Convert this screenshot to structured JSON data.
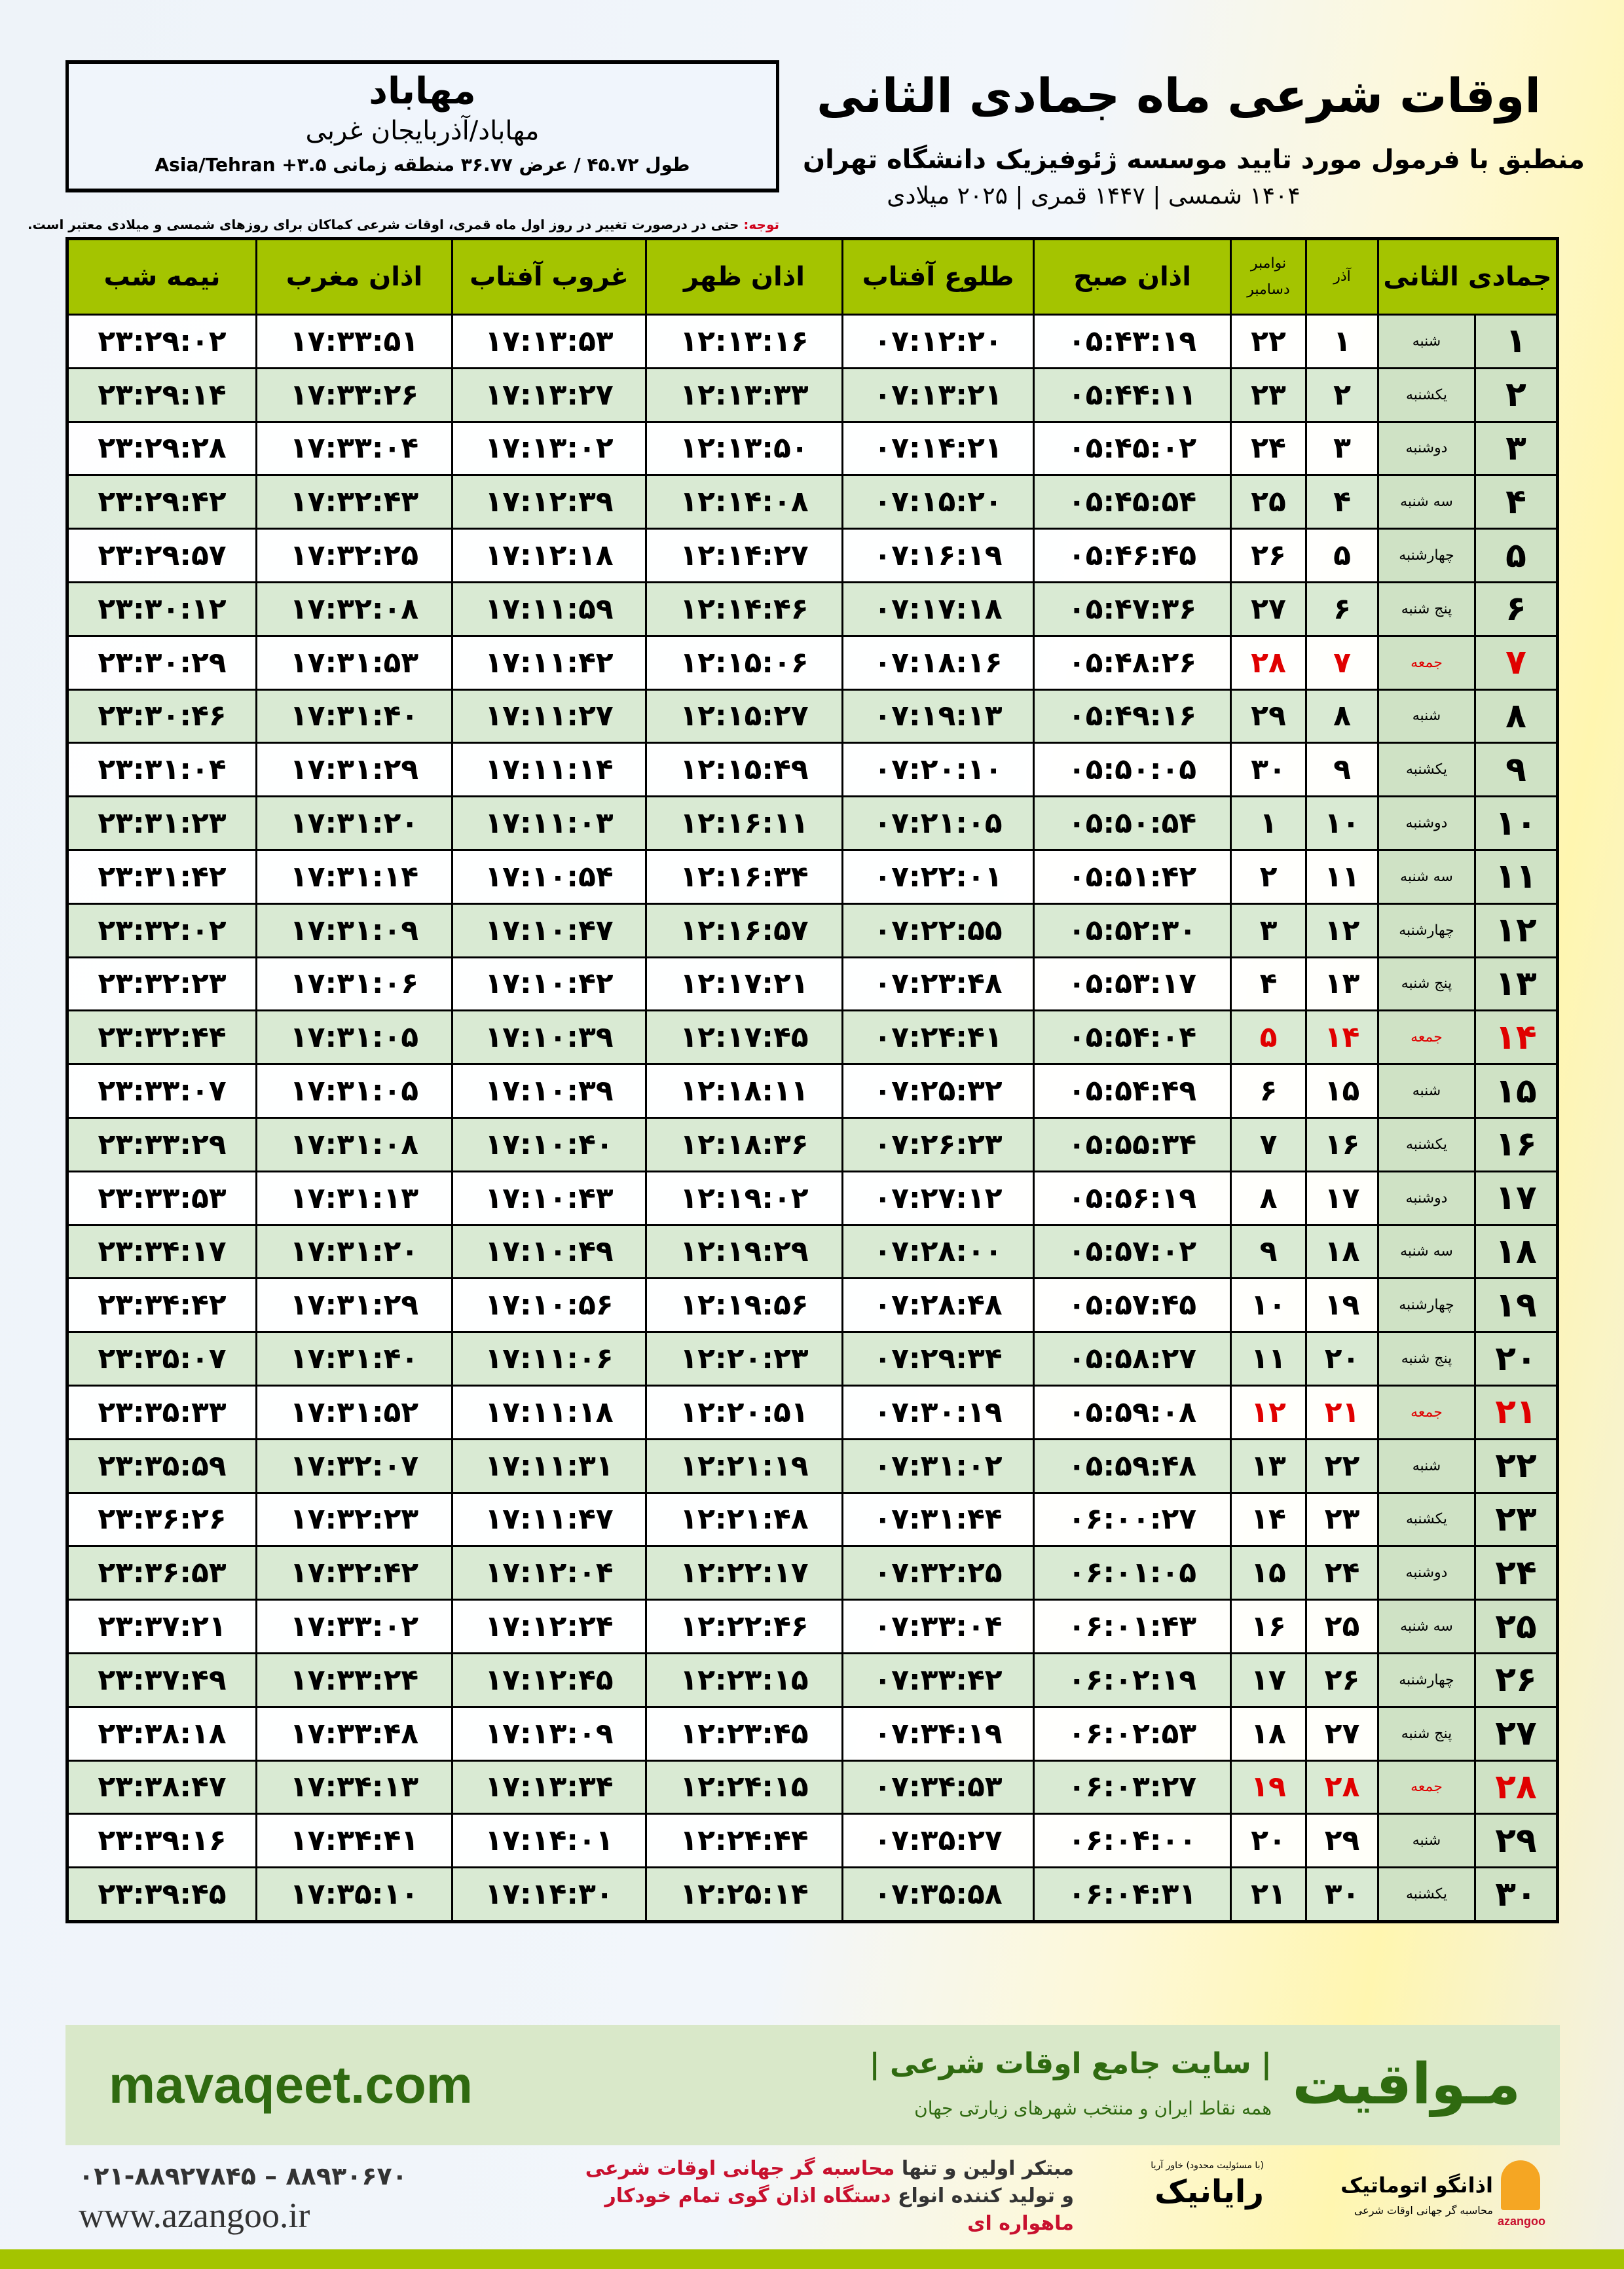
{
  "location": {
    "city": "مهاباد",
    "province": "مهاباد/آذربایجان غربی",
    "coords": "طول ۴۵.۷۲ / عرض ۳۶.۷۷ منطقه زمانی ۳.۵+ Asia/Tehran"
  },
  "header": {
    "title": "اوقات شرعی ماه جمادی الثانی",
    "subtitle": "منطبق با فرمول مورد تایید موسسه ژئوفیزیک دانشگاه تهران",
    "years": "۱۴۰۴ شمسی | ۱۴۴۷ قمری | ۲۰۲۵ میلادی"
  },
  "note": {
    "label": "توجه:",
    "text": " حتی در درصورت تغییر در روز اول ماه قمری، اوقات شرعی کماکان برای روزهای شمسی و میلادی معتبر است."
  },
  "colors": {
    "header_bg": "#a4c400",
    "row_alt": "#d9ead3",
    "friday": "#e00000",
    "brand_green": "#2f6a10"
  },
  "table": {
    "headers": {
      "hijri": "جمادی الثانی",
      "shamsi": "آذر",
      "gregorian_top": "نوامبر",
      "gregorian_bottom": "دسامبر",
      "fajr": "اذان صبح",
      "sunrise": "طلوع آفتاب",
      "dhuhr": "اذان ظهر",
      "sunset": "غروب آفتاب",
      "maghrib": "اذان مغرب",
      "midnight": "نیمه شب"
    },
    "rows": [
      [
        "۱",
        "شنبه",
        "۱",
        "۲۲",
        "۰۵:۴۳:۱۹",
        "۰۷:۱۲:۲۰",
        "۱۲:۱۳:۱۶",
        "۱۷:۱۳:۵۳",
        "۱۷:۳۳:۵۱",
        "۲۳:۲۹:۰۲"
      ],
      [
        "۲",
        "یکشنبه",
        "۲",
        "۲۳",
        "۰۵:۴۴:۱۱",
        "۰۷:۱۳:۲۱",
        "۱۲:۱۳:۳۳",
        "۱۷:۱۳:۲۷",
        "۱۷:۳۳:۲۶",
        "۲۳:۲۹:۱۴"
      ],
      [
        "۳",
        "دوشنبه",
        "۳",
        "۲۴",
        "۰۵:۴۵:۰۲",
        "۰۷:۱۴:۲۱",
        "۱۲:۱۳:۵۰",
        "۱۷:۱۳:۰۲",
        "۱۷:۳۳:۰۴",
        "۲۳:۲۹:۲۸"
      ],
      [
        "۴",
        "سه شنبه",
        "۴",
        "۲۵",
        "۰۵:۴۵:۵۴",
        "۰۷:۱۵:۲۰",
        "۱۲:۱۴:۰۸",
        "۱۷:۱۲:۳۹",
        "۱۷:۳۲:۴۳",
        "۲۳:۲۹:۴۲"
      ],
      [
        "۵",
        "چهارشنبه",
        "۵",
        "۲۶",
        "۰۵:۴۶:۴۵",
        "۰۷:۱۶:۱۹",
        "۱۲:۱۴:۲۷",
        "۱۷:۱۲:۱۸",
        "۱۷:۳۲:۲۵",
        "۲۳:۲۹:۵۷"
      ],
      [
        "۶",
        "پنج شنبه",
        "۶",
        "۲۷",
        "۰۵:۴۷:۳۶",
        "۰۷:۱۷:۱۸",
        "۱۲:۱۴:۴۶",
        "۱۷:۱۱:۵۹",
        "۱۷:۳۲:۰۸",
        "۲۳:۳۰:۱۲"
      ],
      [
        "۷",
        "جمعه",
        "۷",
        "۲۸",
        "۰۵:۴۸:۲۶",
        "۰۷:۱۸:۱۶",
        "۱۲:۱۵:۰۶",
        "۱۷:۱۱:۴۲",
        "۱۷:۳۱:۵۳",
        "۲۳:۳۰:۲۹"
      ],
      [
        "۸",
        "شنبه",
        "۸",
        "۲۹",
        "۰۵:۴۹:۱۶",
        "۰۷:۱۹:۱۳",
        "۱۲:۱۵:۲۷",
        "۱۷:۱۱:۲۷",
        "۱۷:۳۱:۴۰",
        "۲۳:۳۰:۴۶"
      ],
      [
        "۹",
        "یکشنبه",
        "۹",
        "۳۰",
        "۰۵:۵۰:۰۵",
        "۰۷:۲۰:۱۰",
        "۱۲:۱۵:۴۹",
        "۱۷:۱۱:۱۴",
        "۱۷:۳۱:۲۹",
        "۲۳:۳۱:۰۴"
      ],
      [
        "۱۰",
        "دوشنبه",
        "۱۰",
        "۱",
        "۰۵:۵۰:۵۴",
        "۰۷:۲۱:۰۵",
        "۱۲:۱۶:۱۱",
        "۱۷:۱۱:۰۳",
        "۱۷:۳۱:۲۰",
        "۲۳:۳۱:۲۳"
      ],
      [
        "۱۱",
        "سه شنبه",
        "۱۱",
        "۲",
        "۰۵:۵۱:۴۲",
        "۰۷:۲۲:۰۱",
        "۱۲:۱۶:۳۴",
        "۱۷:۱۰:۵۴",
        "۱۷:۳۱:۱۴",
        "۲۳:۳۱:۴۲"
      ],
      [
        "۱۲",
        "چهارشنبه",
        "۱۲",
        "۳",
        "۰۵:۵۲:۳۰",
        "۰۷:۲۲:۵۵",
        "۱۲:۱۶:۵۷",
        "۱۷:۱۰:۴۷",
        "۱۷:۳۱:۰۹",
        "۲۳:۳۲:۰۲"
      ],
      [
        "۱۳",
        "پنج شنبه",
        "۱۳",
        "۴",
        "۰۵:۵۳:۱۷",
        "۰۷:۲۳:۴۸",
        "۱۲:۱۷:۲۱",
        "۱۷:۱۰:۴۲",
        "۱۷:۳۱:۰۶",
        "۲۳:۳۲:۲۳"
      ],
      [
        "۱۴",
        "جمعه",
        "۱۴",
        "۵",
        "۰۵:۵۴:۰۴",
        "۰۷:۲۴:۴۱",
        "۱۲:۱۷:۴۵",
        "۱۷:۱۰:۳۹",
        "۱۷:۳۱:۰۵",
        "۲۳:۳۲:۴۴"
      ],
      [
        "۱۵",
        "شنبه",
        "۱۵",
        "۶",
        "۰۵:۵۴:۴۹",
        "۰۷:۲۵:۳۲",
        "۱۲:۱۸:۱۱",
        "۱۷:۱۰:۳۹",
        "۱۷:۳۱:۰۵",
        "۲۳:۳۳:۰۷"
      ],
      [
        "۱۶",
        "یکشنبه",
        "۱۶",
        "۷",
        "۰۵:۵۵:۳۴",
        "۰۷:۲۶:۲۳",
        "۱۲:۱۸:۳۶",
        "۱۷:۱۰:۴۰",
        "۱۷:۳۱:۰۸",
        "۲۳:۳۳:۲۹"
      ],
      [
        "۱۷",
        "دوشنبه",
        "۱۷",
        "۸",
        "۰۵:۵۶:۱۹",
        "۰۷:۲۷:۱۲",
        "۱۲:۱۹:۰۲",
        "۱۷:۱۰:۴۳",
        "۱۷:۳۱:۱۳",
        "۲۳:۳۳:۵۳"
      ],
      [
        "۱۸",
        "سه شنبه",
        "۱۸",
        "۹",
        "۰۵:۵۷:۰۲",
        "۰۷:۲۸:۰۰",
        "۱۲:۱۹:۲۹",
        "۱۷:۱۰:۴۹",
        "۱۷:۳۱:۲۰",
        "۲۳:۳۴:۱۷"
      ],
      [
        "۱۹",
        "چهارشنبه",
        "۱۹",
        "۱۰",
        "۰۵:۵۷:۴۵",
        "۰۷:۲۸:۴۸",
        "۱۲:۱۹:۵۶",
        "۱۷:۱۰:۵۶",
        "۱۷:۳۱:۲۹",
        "۲۳:۳۴:۴۲"
      ],
      [
        "۲۰",
        "پنج شنبه",
        "۲۰",
        "۱۱",
        "۰۵:۵۸:۲۷",
        "۰۷:۲۹:۳۴",
        "۱۲:۲۰:۲۳",
        "۱۷:۱۱:۰۶",
        "۱۷:۳۱:۴۰",
        "۲۳:۳۵:۰۷"
      ],
      [
        "۲۱",
        "جمعه",
        "۲۱",
        "۱۲",
        "۰۵:۵۹:۰۸",
        "۰۷:۳۰:۱۹",
        "۱۲:۲۰:۵۱",
        "۱۷:۱۱:۱۸",
        "۱۷:۳۱:۵۲",
        "۲۳:۳۵:۳۳"
      ],
      [
        "۲۲",
        "شنبه",
        "۲۲",
        "۱۳",
        "۰۵:۵۹:۴۸",
        "۰۷:۳۱:۰۲",
        "۱۲:۲۱:۱۹",
        "۱۷:۱۱:۳۱",
        "۱۷:۳۲:۰۷",
        "۲۳:۳۵:۵۹"
      ],
      [
        "۲۳",
        "یکشنبه",
        "۲۳",
        "۱۴",
        "۰۶:۰۰:۲۷",
        "۰۷:۳۱:۴۴",
        "۱۲:۲۱:۴۸",
        "۱۷:۱۱:۴۷",
        "۱۷:۳۲:۲۳",
        "۲۳:۳۶:۲۶"
      ],
      [
        "۲۴",
        "دوشنبه",
        "۲۴",
        "۱۵",
        "۰۶:۰۱:۰۵",
        "۰۷:۳۲:۲۵",
        "۱۲:۲۲:۱۷",
        "۱۷:۱۲:۰۴",
        "۱۷:۳۲:۴۲",
        "۲۳:۳۶:۵۳"
      ],
      [
        "۲۵",
        "سه شنبه",
        "۲۵",
        "۱۶",
        "۰۶:۰۱:۴۳",
        "۰۷:۳۳:۰۴",
        "۱۲:۲۲:۴۶",
        "۱۷:۱۲:۲۴",
        "۱۷:۳۳:۰۲",
        "۲۳:۳۷:۲۱"
      ],
      [
        "۲۶",
        "چهارشنبه",
        "۲۶",
        "۱۷",
        "۰۶:۰۲:۱۹",
        "۰۷:۳۳:۴۲",
        "۱۲:۲۳:۱۵",
        "۱۷:۱۲:۴۵",
        "۱۷:۳۳:۲۴",
        "۲۳:۳۷:۴۹"
      ],
      [
        "۲۷",
        "پنج شنبه",
        "۲۷",
        "۱۸",
        "۰۶:۰۲:۵۳",
        "۰۷:۳۴:۱۹",
        "۱۲:۲۳:۴۵",
        "۱۷:۱۳:۰۹",
        "۱۷:۳۳:۴۸",
        "۲۳:۳۸:۱۸"
      ],
      [
        "۲۸",
        "جمعه",
        "۲۸",
        "۱۹",
        "۰۶:۰۳:۲۷",
        "۰۷:۳۴:۵۳",
        "۱۲:۲۴:۱۵",
        "۱۷:۱۳:۳۴",
        "۱۷:۳۴:۱۳",
        "۲۳:۳۸:۴۷"
      ],
      [
        "۲۹",
        "شنبه",
        "۲۹",
        "۲۰",
        "۰۶:۰۴:۰۰",
        "۰۷:۳۵:۲۷",
        "۱۲:۲۴:۴۴",
        "۱۷:۱۴:۰۱",
        "۱۷:۳۴:۴۱",
        "۲۳:۳۹:۱۶"
      ],
      [
        "۳۰",
        "یکشنبه",
        "۳۰",
        "۲۱",
        "۰۶:۰۴:۳۱",
        "۰۷:۳۵:۵۸",
        "۱۲:۲۵:۱۴",
        "۱۷:۱۴:۳۰",
        "۱۷:۳۵:۱۰",
        "۲۳:۳۹:۴۵"
      ]
    ]
  },
  "banner": {
    "brand": "مـواقیت",
    "tagline": "| سایت جامع اوقات شرعی |",
    "tagline2": "همه نقاط ایران و منتخب شهرهای زیارتی جهان",
    "site": "mavaqeet.com"
  },
  "footer": {
    "phone": "۰۲۱-۸۸۹۲۷۸۴۵ – ۸۸۹۳۰۶۷۰",
    "website": "www.azangoo.ir",
    "promo_line1_a": "مبتکر اولین و تنها ",
    "promo_line1_b": "محاسبه گر جهانی اوقات شرعی",
    "promo_line2_a": "و تولید کننده انواع ",
    "promo_line2_b": "دستگاه اذان گوی تمام خودکار ماهواره ای",
    "logo_rayanik": "رایانیک",
    "logo_rayanik_sub": "(با مسئولیت محدود) خاور آریا",
    "logo_azangoo": "اذانگو اتوماتیک",
    "logo_azangoo_sub": "محاسبه گر جهانی اوقات شرعی",
    "logo_azangoo_en": "azangoo"
  }
}
